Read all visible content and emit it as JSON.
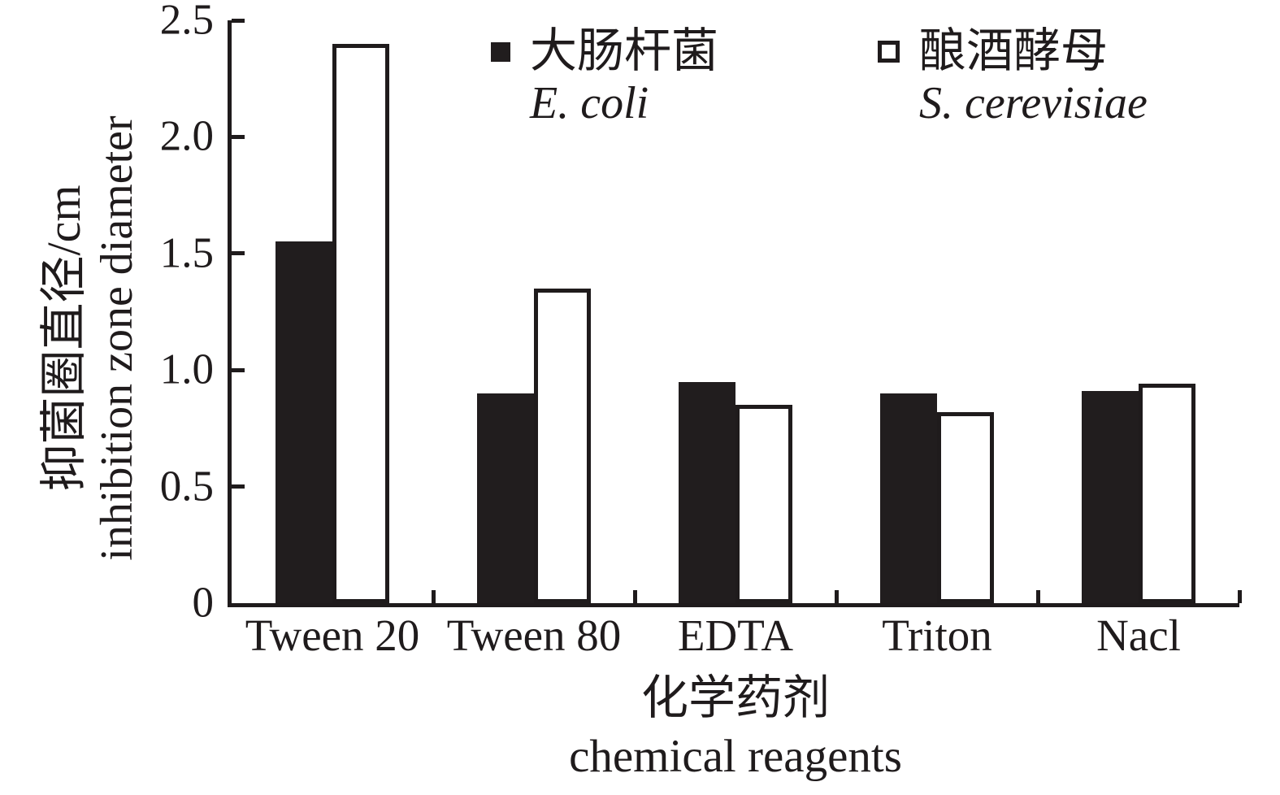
{
  "figure": {
    "background": "#ffffff",
    "colors": {
      "ink": "#1f1b1c",
      "bar_filled": "#211d1e",
      "bar_open_fill": "#ffffff"
    }
  },
  "chart_data": {
    "type": "bar",
    "title": "",
    "categories": [
      "Tween 20",
      "Tween 80",
      "EDTA",
      "Triton",
      "Nacl"
    ],
    "series": [
      {
        "label_zh": "大肠杆菌",
        "label_latin": "E. coli",
        "style": "filled-black",
        "values": [
          1.55,
          0.9,
          0.95,
          0.9,
          0.91
        ]
      },
      {
        "label_zh": "酿酒酵母",
        "label_latin": "S. cerevisiae",
        "style": "open-white",
        "values": [
          2.4,
          1.35,
          0.85,
          0.82,
          0.94
        ]
      }
    ],
    "xlabel_zh": "化学药剂",
    "xlabel_en": "chemical reagents",
    "ylabel_zh": "抑菌圈直径/cm",
    "ylabel_en": "inhibition zone diameter",
    "ylim": [
      0,
      2.5
    ],
    "ytick_values": [
      0,
      0.5,
      1.0,
      1.5,
      2.0,
      2.5
    ],
    "ytick_labels": [
      "0",
      "0.5",
      "1.0",
      "1.5",
      "2.0",
      "2.5"
    ],
    "grid": false,
    "legend_position": "top-inside"
  }
}
